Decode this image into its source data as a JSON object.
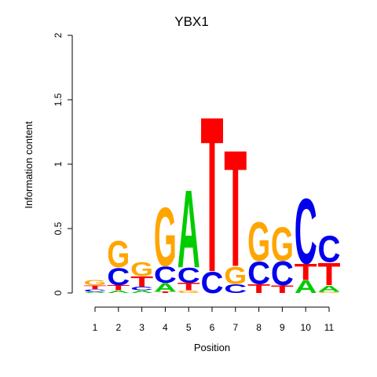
{
  "chart_data": {
    "type": "sequence-logo",
    "title": "YBX1",
    "xlabel": "Position",
    "ylabel": "Information content",
    "ylim": [
      0,
      2
    ],
    "y_ticks": [
      "0",
      "0.5",
      "1",
      "1.5",
      "2"
    ],
    "x_ticks": [
      "1",
      "2",
      "3",
      "4",
      "5",
      "6",
      "7",
      "8",
      "9",
      "10",
      "11"
    ],
    "colors": {
      "A": "#00cc00",
      "C": "#0000ee",
      "G": "#ffa500",
      "T": "#ff0000"
    },
    "positions": [
      {
        "position": 1,
        "stack": [
          {
            "letter": "A",
            "height": 0.01
          },
          {
            "letter": "C",
            "height": 0.02
          },
          {
            "letter": "T",
            "height": 0.03
          },
          {
            "letter": "G",
            "height": 0.04
          }
        ]
      },
      {
        "position": 2,
        "stack": [
          {
            "letter": "A",
            "height": 0.02
          },
          {
            "letter": "T",
            "height": 0.04
          },
          {
            "letter": "C",
            "height": 0.14
          },
          {
            "letter": "G",
            "height": 0.21
          }
        ]
      },
      {
        "position": 3,
        "stack": [
          {
            "letter": "A",
            "height": 0.02
          },
          {
            "letter": "C",
            "height": 0.03
          },
          {
            "letter": "T",
            "height": 0.08
          },
          {
            "letter": "G",
            "height": 0.11
          }
        ]
      },
      {
        "position": 4,
        "stack": [
          {
            "letter": "T",
            "height": 0.01
          },
          {
            "letter": "A",
            "height": 0.07
          },
          {
            "letter": "C",
            "height": 0.13
          },
          {
            "letter": "G",
            "height": 0.47
          }
        ]
      },
      {
        "position": 5,
        "stack": [
          {
            "letter": "G",
            "height": 0.02
          },
          {
            "letter": "T",
            "height": 0.06
          },
          {
            "letter": "C",
            "height": 0.12
          },
          {
            "letter": "A",
            "height": 0.62
          }
        ]
      },
      {
        "position": 6,
        "stack": [
          {
            "letter": "C",
            "height": 0.17
          },
          {
            "letter": "T",
            "height": 1.24
          }
        ]
      },
      {
        "position": 7,
        "stack": [
          {
            "letter": "C",
            "height": 0.07
          },
          {
            "letter": "G",
            "height": 0.14
          },
          {
            "letter": "T",
            "height": 0.93
          }
        ]
      },
      {
        "position": 8,
        "stack": [
          {
            "letter": "T",
            "height": 0.07
          },
          {
            "letter": "C",
            "height": 0.18
          },
          {
            "letter": "G",
            "height": 0.31
          }
        ]
      },
      {
        "position": 9,
        "stack": [
          {
            "letter": "T",
            "height": 0.06
          },
          {
            "letter": "C",
            "height": 0.19
          },
          {
            "letter": "G",
            "height": 0.27
          }
        ]
      },
      {
        "position": 10,
        "stack": [
          {
            "letter": "A",
            "height": 0.1
          },
          {
            "letter": "T",
            "height": 0.13
          },
          {
            "letter": "C",
            "height": 0.52
          }
        ]
      },
      {
        "position": 11,
        "stack": [
          {
            "letter": "G",
            "height": 0.01
          },
          {
            "letter": "A",
            "height": 0.05
          },
          {
            "letter": "T",
            "height": 0.18
          },
          {
            "letter": "C",
            "height": 0.21
          }
        ]
      }
    ]
  }
}
